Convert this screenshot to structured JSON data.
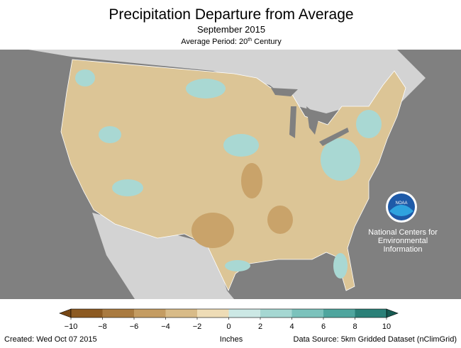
{
  "header": {
    "title": "Precipitation Departure from Average",
    "subtitle": "September 2015",
    "average_period": {
      "prefix": "Average Period: 20",
      "sup": "th",
      "suffix": " Century"
    }
  },
  "logo": {
    "emblem": "NOAA",
    "lines": [
      "National Centers for",
      "Environmental",
      "Information"
    ]
  },
  "legend": {
    "ticks": [
      "−10",
      "−8",
      "−6",
      "−4",
      "−2",
      "0",
      "2",
      "4",
      "6",
      "8",
      "10"
    ],
    "colors": [
      "#8c5a22",
      "#a97a40",
      "#c49c62",
      "#d8bb88",
      "#eedcb6",
      "#cce8e5",
      "#a5d7d2",
      "#7cc2bc",
      "#4fa59e",
      "#2b8078"
    ],
    "under_color": "#774715",
    "over_color": "#175a52",
    "unit": "Inches"
  },
  "footer": {
    "created": "Created: Wed Oct 07 2015",
    "source": "Data Source: 5km Gridded Dataset (nClimGrid)"
  }
}
